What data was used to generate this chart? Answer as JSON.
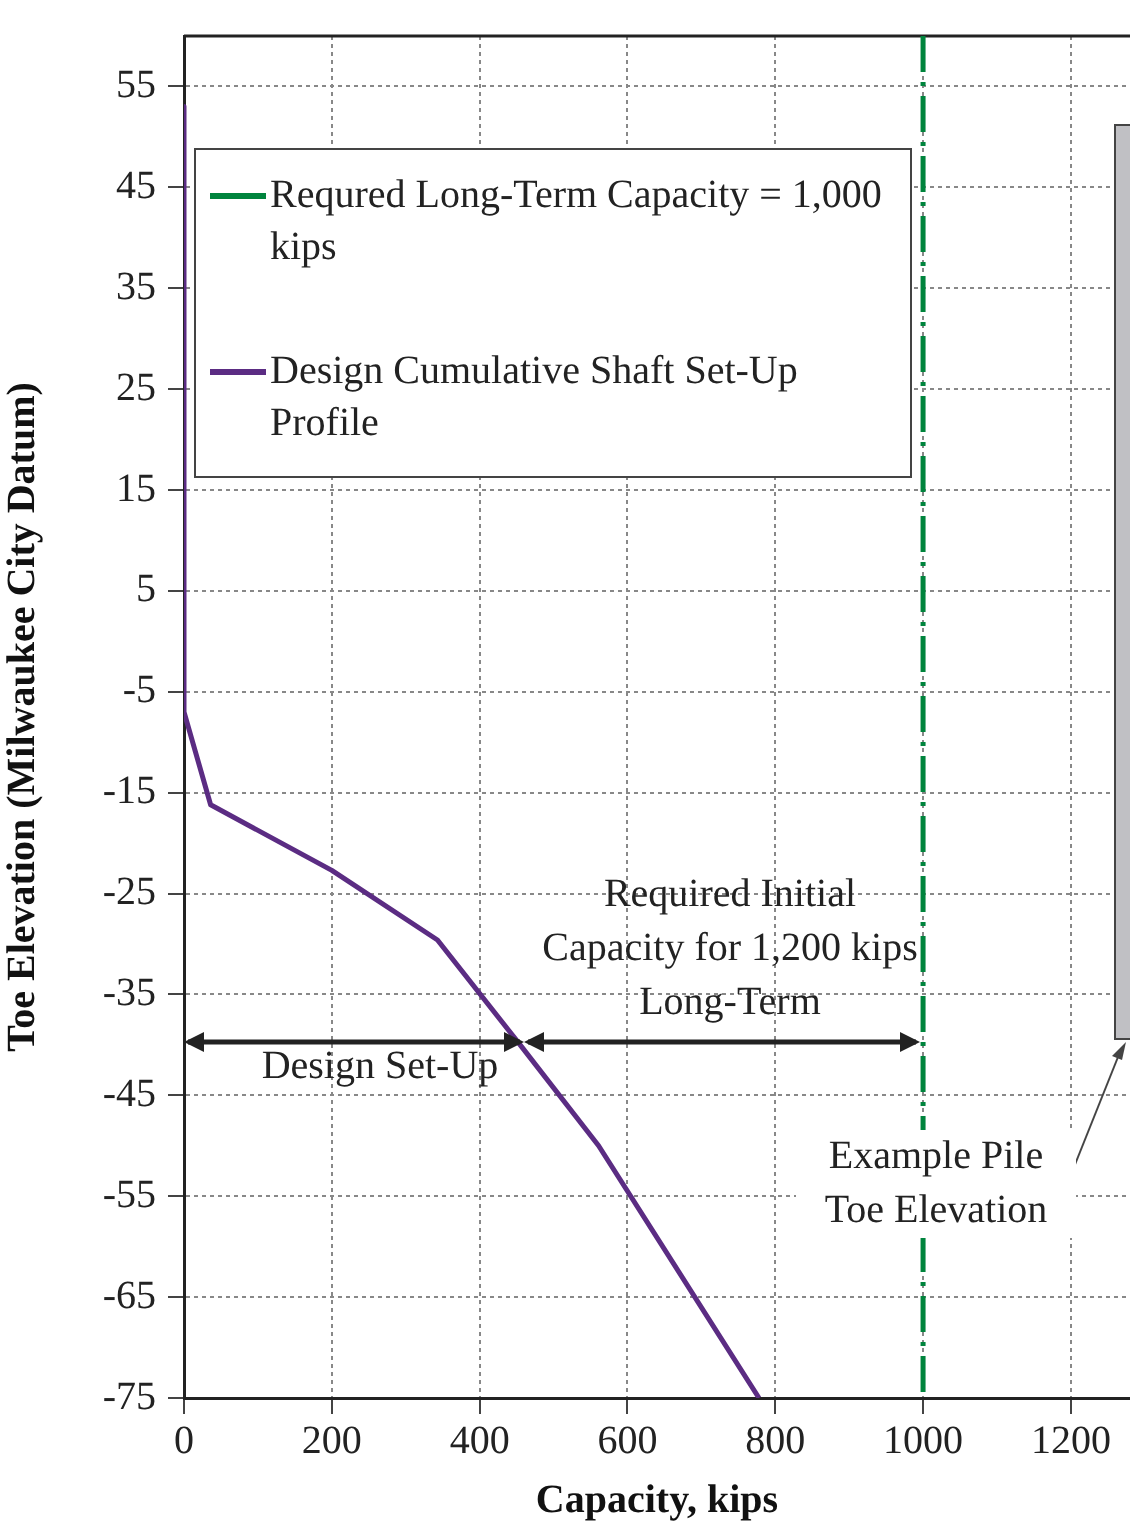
{
  "chart_data": {
    "type": "line",
    "xlabel": "Capacity, kips",
    "ylabel": "Toe Elevation (Milwaukee City Datum)",
    "xlim": [
      0,
      1280
    ],
    "xticks": [
      0,
      200,
      400,
      600,
      800,
      1000,
      1200
    ],
    "ylim": [
      -75,
      60
    ],
    "yticks": [
      -75,
      -65,
      -55,
      -45,
      -35,
      -25,
      -15,
      -5,
      5,
      15,
      25,
      35,
      45,
      55
    ],
    "grid": true,
    "legend": "top left",
    "marker": "none",
    "series": [
      {
        "name": "Design Cumulative Shaft Set-Up Profile",
        "color": "#5b2c83",
        "x": [
          0,
          0,
          36,
          200,
          343,
          458,
          561,
          778
        ],
        "values": [
          53,
          -7,
          -16.2,
          -22.7,
          -29.6,
          -40.3,
          -50,
          -75
        ]
      }
    ],
    "ref_lines": [
      {
        "axis": "x",
        "value": 1000,
        "label": "Requred Long-Term Capacity = 1,000 kips",
        "color": "#00843d",
        "line_style": "dashed"
      }
    ],
    "annotations": [
      "Required Initial Capacity for 1,200 kips Long-Term",
      "Design Set-Up",
      "Example Pile Toe Elevation"
    ]
  }
}
